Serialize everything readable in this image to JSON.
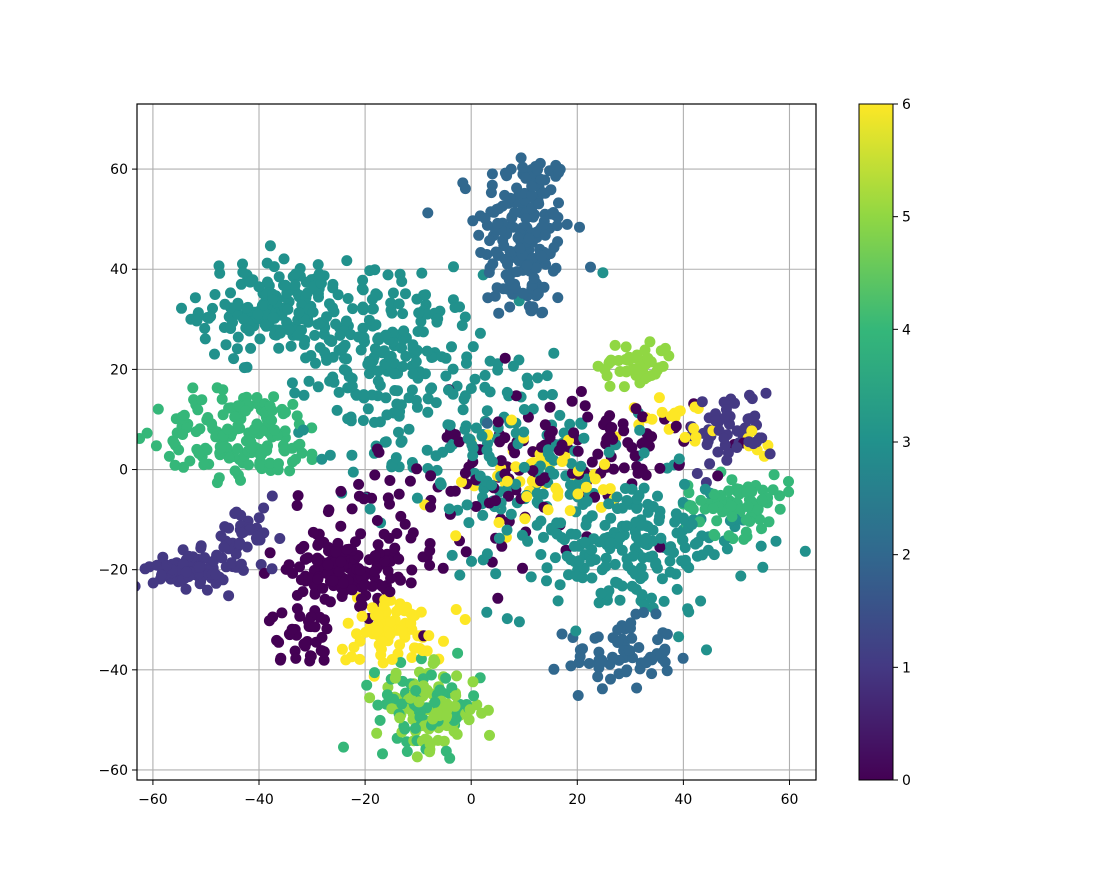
{
  "chart_data": {
    "type": "scatter",
    "title": "",
    "xlabel": "",
    "ylabel": "",
    "xlim": [
      -63,
      65
    ],
    "ylim": [
      -62,
      73
    ],
    "xticks": [
      -60,
      -40,
      -20,
      0,
      20,
      40,
      60
    ],
    "yticks": [
      -60,
      -40,
      -20,
      0,
      20,
      40,
      60
    ],
    "grid": true,
    "colormap": "viridis",
    "colorbar": {
      "range": [
        0,
        6
      ],
      "ticks": [
        0,
        1,
        2,
        3,
        4,
        5,
        6
      ]
    },
    "clusters": [
      {
        "label": 2,
        "center": [
          10,
          47
        ],
        "spread": [
          4.5,
          9
        ],
        "count": 190
      },
      {
        "label": 2,
        "center": [
          28,
          -37
        ],
        "spread": [
          5,
          3.5
        ],
        "count": 70
      },
      {
        "label": 3,
        "center": [
          -37,
          32
        ],
        "spread": [
          7,
          5
        ],
        "count": 170
      },
      {
        "label": 3,
        "center": [
          -15,
          23
        ],
        "spread": [
          8,
          8
        ],
        "count": 200
      },
      {
        "label": 3,
        "center": [
          28,
          -15
        ],
        "spread": [
          12,
          7
        ],
        "count": 230
      },
      {
        "label": 3,
        "center": [
          5,
          5
        ],
        "spread": [
          12,
          10
        ],
        "count": 150
      },
      {
        "label": 4,
        "center": [
          -43,
          7
        ],
        "spread": [
          8,
          4.5
        ],
        "count": 160
      },
      {
        "label": 4,
        "center": [
          50,
          -7
        ],
        "spread": [
          5,
          3
        ],
        "count": 80
      },
      {
        "label": 4,
        "center": [
          -8,
          -47
        ],
        "spread": [
          5,
          4
        ],
        "count": 70
      },
      {
        "label": 5,
        "center": [
          -8,
          -48
        ],
        "spread": [
          5,
          4
        ],
        "count": 90
      },
      {
        "label": 5,
        "center": [
          31,
          21
        ],
        "spread": [
          3.5,
          2.5
        ],
        "count": 50
      },
      {
        "label": 1,
        "center": [
          -53,
          -20
        ],
        "spread": [
          3.5,
          1.8
        ],
        "count": 90
      },
      {
        "label": 1,
        "center": [
          -42,
          -14
        ],
        "spread": [
          3,
          3.5
        ],
        "count": 40
      },
      {
        "label": 1,
        "center": [
          49,
          8
        ],
        "spread": [
          4,
          4
        ],
        "count": 50
      },
      {
        "label": 0,
        "center": [
          -24,
          -20
        ],
        "spread": [
          5,
          3
        ],
        "count": 130
      },
      {
        "label": 0,
        "center": [
          -32,
          -33
        ],
        "spread": [
          3,
          3
        ],
        "count": 40
      },
      {
        "label": 0,
        "center": [
          20,
          3
        ],
        "spread": [
          12,
          7
        ],
        "count": 120
      },
      {
        "label": 0,
        "center": [
          -10,
          -10
        ],
        "spread": [
          12,
          8
        ],
        "count": 80
      },
      {
        "label": 6,
        "center": [
          -15,
          -32
        ],
        "spread": [
          5,
          3.5
        ],
        "count": 80
      },
      {
        "label": 6,
        "center": [
          12,
          -2
        ],
        "spread": [
          10,
          5
        ],
        "count": 50
      },
      {
        "label": 6,
        "center": [
          38,
          10
        ],
        "spread": [
          4,
          2
        ],
        "count": 20
      },
      {
        "label": 6,
        "center": [
          55,
          6
        ],
        "spread": [
          2,
          2
        ],
        "count": 8
      }
    ]
  }
}
